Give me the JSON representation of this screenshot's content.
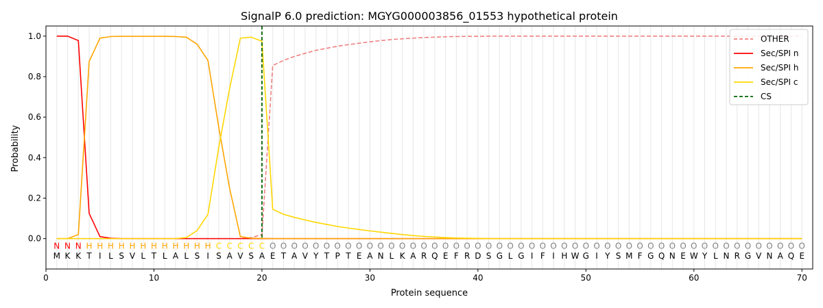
{
  "chart_data": {
    "type": "line",
    "title": "SignalP 6.0 prediction: MGYG000003856_01553 hypothetical protein",
    "xlabel": "Protein sequence",
    "ylabel": "Probability",
    "xlim": [
      0,
      71
    ],
    "ylim": [
      -0.15,
      1.05
    ],
    "x_ticks": [
      0,
      10,
      20,
      30,
      40,
      50,
      60,
      70
    ],
    "y_ticks": [
      0.0,
      0.2,
      0.4,
      0.6,
      0.8,
      1.0
    ],
    "x_tick_labels": [
      "0",
      "10",
      "20",
      "30",
      "40",
      "50",
      "60",
      "70"
    ],
    "y_tick_labels": [
      "0.0",
      "0.2",
      "0.4",
      "0.6",
      "0.8",
      "1.0"
    ],
    "grid": "vertical lines at each residue",
    "legend_position": "top-right",
    "sequence": [
      "M",
      "K",
      "K",
      "T",
      "I",
      "L",
      "S",
      "V",
      "L",
      "T",
      "L",
      "A",
      "L",
      "S",
      "I",
      "S",
      "A",
      "V",
      "S",
      "A",
      "E",
      "T",
      "A",
      "V",
      "Y",
      "T",
      "P",
      "T",
      "E",
      "A",
      "N",
      "L",
      "K",
      "A",
      "R",
      "Q",
      "E",
      "F",
      "R",
      "D",
      "S",
      "G",
      "L",
      "G",
      "I",
      "F",
      "I",
      "H",
      "W",
      "G",
      "I",
      "Y",
      "S",
      "M",
      "F",
      "G",
      "Q",
      "N",
      "E",
      "W",
      "Y",
      "L",
      "N",
      "R",
      "G",
      "V",
      "N",
      "A",
      "Q",
      "E"
    ],
    "labels": [
      "N",
      "N",
      "N",
      "H",
      "H",
      "H",
      "H",
      "H",
      "H",
      "H",
      "H",
      "H",
      "H",
      "H",
      "H",
      "C",
      "C",
      "C",
      "C",
      "C",
      "O",
      "O",
      "O",
      "O",
      "O",
      "O",
      "O",
      "O",
      "O",
      "O",
      "O",
      "O",
      "O",
      "O",
      "O",
      "O",
      "O",
      "O",
      "O",
      "O",
      "O",
      "O",
      "O",
      "O",
      "O",
      "O",
      "O",
      "O",
      "O",
      "O",
      "O",
      "O",
      "O",
      "O",
      "O",
      "O",
      "O",
      "O",
      "O",
      "O",
      "O",
      "O",
      "O",
      "O",
      "O",
      "O",
      "O",
      "O",
      "O",
      "O"
    ],
    "label_colors": {
      "N": "#ff0000",
      "H": "#ffa500",
      "C": "#ffd700",
      "O": "#808080"
    },
    "series": [
      {
        "name": "OTHER",
        "color": "#f08080",
        "dash": "dashed",
        "values": [
          0,
          0,
          0,
          0,
          0,
          0,
          0,
          0,
          0,
          0,
          0,
          0,
          0,
          0,
          0,
          0,
          0,
          0,
          0.005,
          0.02,
          0.855,
          0.88,
          0.9,
          0.915,
          0.93,
          0.94,
          0.95,
          0.958,
          0.965,
          0.972,
          0.978,
          0.983,
          0.987,
          0.99,
          0.993,
          0.995,
          0.997,
          0.998,
          0.999,
          0.999,
          1,
          1,
          1,
          1,
          1,
          1,
          1,
          1,
          1,
          1,
          1,
          1,
          1,
          1,
          1,
          1,
          1,
          1,
          1,
          1,
          1,
          1,
          1,
          1,
          1,
          1,
          1,
          1,
          1,
          1
        ]
      },
      {
        "name": "Sec/SPI n",
        "color": "#ff0000",
        "dash": "solid",
        "values": [
          1.0,
          1.0,
          0.978,
          0.125,
          0.01,
          0.002,
          0,
          0,
          0,
          0,
          0,
          0,
          0,
          0,
          0,
          0,
          0,
          0,
          0,
          0,
          0,
          0,
          0,
          0,
          0,
          0,
          0,
          0,
          0,
          0,
          0,
          0,
          0,
          0,
          0,
          0,
          0,
          0,
          0,
          0,
          0,
          0,
          0,
          0,
          0,
          0,
          0,
          0,
          0,
          0,
          0,
          0,
          0,
          0,
          0,
          0,
          0,
          0,
          0,
          0,
          0,
          0,
          0,
          0,
          0,
          0,
          0,
          0,
          0,
          0
        ]
      },
      {
        "name": "Sec/SPI h",
        "color": "#ffa500",
        "dash": "solid",
        "values": [
          0,
          0,
          0.02,
          0.875,
          0.99,
          0.998,
          0.999,
          0.999,
          0.999,
          0.999,
          0.999,
          0.998,
          0.995,
          0.96,
          0.88,
          0.55,
          0.25,
          0.01,
          0.002,
          0.001,
          0,
          0,
          0,
          0,
          0,
          0,
          0,
          0,
          0,
          0,
          0,
          0,
          0,
          0,
          0,
          0,
          0,
          0,
          0,
          0,
          0,
          0,
          0,
          0,
          0,
          0,
          0,
          0,
          0,
          0,
          0,
          0,
          0,
          0,
          0,
          0,
          0,
          0,
          0,
          0,
          0,
          0,
          0,
          0,
          0,
          0,
          0,
          0,
          0,
          0
        ]
      },
      {
        "name": "Sec/SPI c",
        "color": "#ffd700",
        "dash": "solid",
        "values": [
          0,
          0,
          0,
          0,
          0,
          0,
          0,
          0,
          0,
          0,
          0,
          0,
          0.005,
          0.04,
          0.12,
          0.45,
          0.74,
          0.99,
          0.995,
          0.975,
          0.145,
          0.12,
          0.105,
          0.092,
          0.08,
          0.07,
          0.06,
          0.052,
          0.045,
          0.038,
          0.032,
          0.026,
          0.02,
          0.015,
          0.011,
          0.008,
          0.005,
          0.003,
          0.002,
          0.001,
          0,
          0,
          0,
          0,
          0,
          0,
          0,
          0,
          0,
          0,
          0,
          0,
          0,
          0,
          0,
          0,
          0,
          0,
          0,
          0,
          0,
          0,
          0,
          0,
          0,
          0,
          0,
          0,
          0,
          0
        ]
      }
    ],
    "cleavage_site": {
      "name": "CS",
      "x": 20,
      "color": "#006400",
      "dash": "dashed"
    }
  }
}
